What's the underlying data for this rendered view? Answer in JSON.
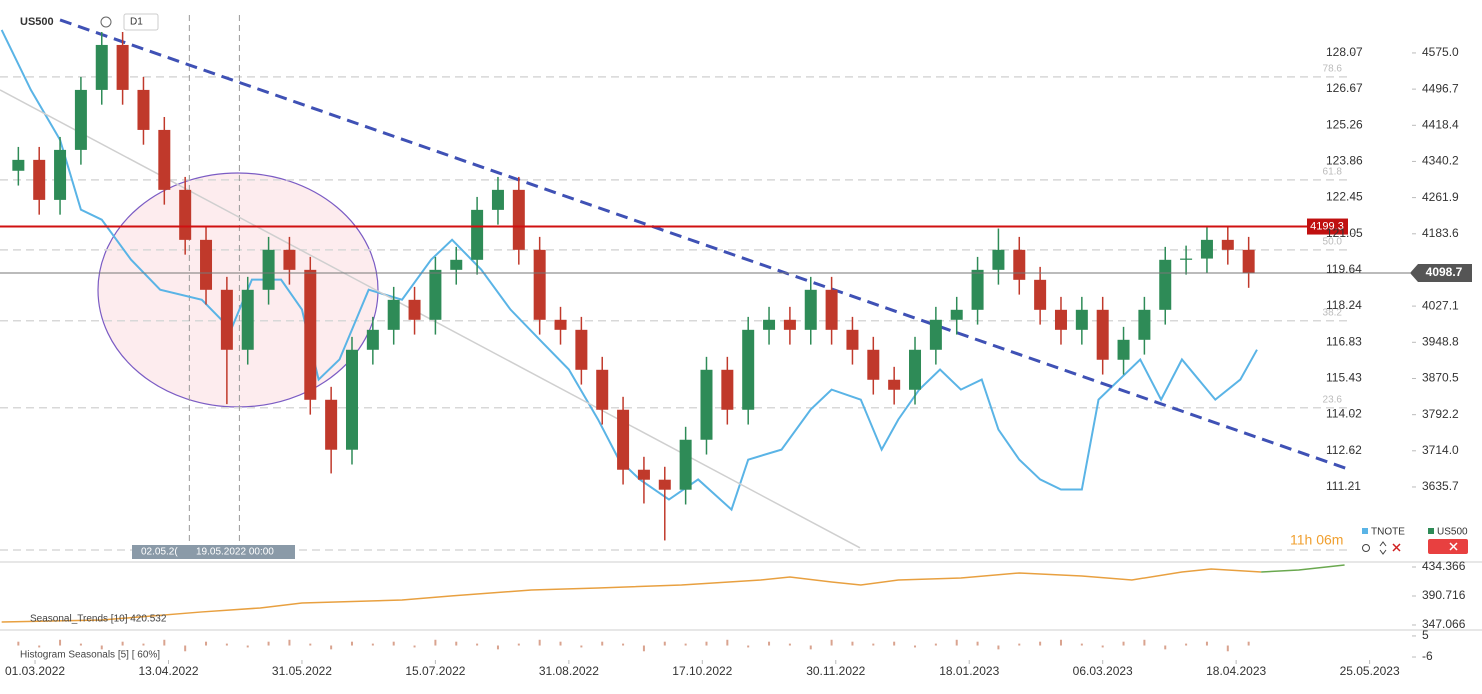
{
  "chart_data": [
    {
      "type": "candlestick",
      "title": "US500",
      "timeframe": "D1",
      "name": "US500",
      "color_up": "#2e8b57",
      "color_down": "#c0392b",
      "x": [
        -4,
        1,
        6,
        11,
        16,
        21,
        26,
        31,
        36,
        41,
        46,
        51,
        56,
        61,
        66,
        71,
        76,
        81,
        86,
        91,
        96,
        101,
        106,
        111,
        116,
        121,
        126,
        131,
        136,
        141,
        146,
        151,
        156,
        161,
        166,
        171,
        176,
        181,
        186,
        191,
        196,
        201,
        206,
        211,
        216,
        221,
        226,
        231,
        236,
        241,
        246,
        251,
        256,
        261,
        266,
        271,
        276,
        281,
        286,
        291
      ],
      "open": [
        4320.0,
        4343.6,
        4257.0,
        4365.2,
        4495.0,
        4592.3,
        4495.0,
        4408.4,
        4278.7,
        4170.5,
        4062.4,
        3932.6,
        4062.4,
        4148.9,
        4105.6,
        3824.4,
        3716.3,
        3932.6,
        3975.8,
        4040.7,
        3997.5,
        4105.6,
        4127.3,
        4235.4,
        4278.7,
        4148.9,
        3997.5,
        3975.8,
        3889.3,
        3802.8,
        3673.0,
        3651.4,
        3629.8,
        3737.9,
        3889.3,
        3802.8,
        3975.8,
        3997.5,
        3975.8,
        4062.4,
        3975.8,
        3932.6,
        3867.7,
        3846.1,
        3932.6,
        3997.5,
        4019.1,
        4105.6,
        4148.9,
        4084.0,
        4019.1,
        3975.8,
        4019.1,
        3911.0,
        3954.2,
        4019.1,
        4127.3,
        4130.0,
        4170.5,
        4148.9
      ],
      "close": [
        4343.6,
        4257.0,
        4365.2,
        4495.0,
        4592.3,
        4495.0,
        4408.4,
        4278.7,
        4170.5,
        4062.4,
        3932.6,
        4062.4,
        4148.9,
        4105.6,
        3824.4,
        3716.3,
        3932.6,
        3975.8,
        4040.7,
        3997.5,
        4105.6,
        4127.3,
        4235.4,
        4278.7,
        4148.9,
        3997.5,
        3975.8,
        3889.3,
        3802.8,
        3673.0,
        3651.4,
        3629.8,
        3737.9,
        3889.3,
        3802.8,
        3975.8,
        3997.5,
        3975.8,
        4062.4,
        3975.8,
        3932.6,
        3867.7,
        3846.1,
        3932.6,
        3997.5,
        4019.1,
        4105.6,
        4148.9,
        4084.0,
        4019.1,
        3975.8,
        4019.1,
        3911.0,
        3954.2,
        4019.1,
        4127.3,
        4130.0,
        4170.5,
        4148.9,
        4098.7
      ],
      "high": [
        4371.6,
        4371.6,
        4393.2,
        4523.0,
        4620.3,
        4620.3,
        4523.0,
        4436.4,
        4306.7,
        4198.5,
        4090.4,
        4090.4,
        4176.9,
        4176.9,
        4133.6,
        3852.4,
        3960.6,
        4003.8,
        4068.7,
        4068.7,
        4133.6,
        4155.3,
        4263.4,
        4306.7,
        4306.7,
        4176.9,
        4025.5,
        4003.8,
        3917.3,
        3830.8,
        3701.0,
        3679.4,
        3765.9,
        3917.3,
        3917.3,
        4003.8,
        4025.5,
        4025.5,
        4090.4,
        4090.4,
        4003.8,
        3960.6,
        3895.7,
        3960.6,
        4025.5,
        4047.1,
        4133.6,
        4195.0,
        4176.9,
        4112.0,
        4047.1,
        4047.1,
        4047.1,
        3982.2,
        4047.1,
        4155.3,
        4158.0,
        4198.5,
        4198.5,
        4176.9
      ],
      "low": [
        4288.0,
        4225.0,
        4225.0,
        4333.2,
        4463.0,
        4463.0,
        4376.4,
        4246.7,
        4138.5,
        4030.4,
        3815.0,
        3900.6,
        4030.4,
        4073.6,
        3792.4,
        3665.0,
        3684.3,
        3900.6,
        3943.8,
        3965.5,
        3965.5,
        4073.6,
        4095.3,
        4203.4,
        4116.9,
        3965.5,
        3943.8,
        3857.3,
        3770.8,
        3641.0,
        3600.0,
        3520.0,
        3597.8,
        3705.9,
        3770.8,
        3770.8,
        3943.8,
        3943.8,
        3943.8,
        3943.8,
        3900.6,
        3835.7,
        3814.1,
        3814.1,
        3900.6,
        3965.5,
        3987.1,
        4073.6,
        4052.0,
        3987.1,
        3943.8,
        3943.8,
        3879.0,
        3879.0,
        3922.2,
        3987.1,
        4095.3,
        4098.0,
        4116.9,
        4066.7
      ],
      "series": [
        {
          "name": "TNOTE",
          "color": "#5ab4e6",
          "axis": "y2",
          "x": [
            -8,
            -1,
            6,
            11,
            16,
            23,
            30,
            40,
            47,
            52,
            59,
            64,
            68,
            73,
            80,
            88,
            95,
            100,
            107,
            114,
            121,
            128,
            135,
            140,
            145,
            152,
            159,
            167,
            171,
            179,
            186,
            191,
            198,
            203,
            207,
            212,
            217,
            222,
            227,
            231,
            236,
            241,
            246,
            251,
            255,
            260,
            265,
            270,
            275,
            279,
            283,
            289,
            293
          ],
          "values": [
            128.96,
            126.63,
            124.69,
            121.98,
            121.59,
            120.04,
            118.87,
            118.48,
            117.32,
            119.26,
            119.26,
            118.1,
            115.38,
            116.16,
            118.87,
            118.48,
            120.04,
            120.81,
            119.65,
            118.1,
            116.93,
            115.77,
            113.83,
            112.27,
            111.5,
            110.72,
            111.5,
            110.33,
            112.27,
            112.66,
            114.22,
            114.99,
            114.6,
            112.66,
            113.83,
            114.99,
            115.77,
            114.99,
            115.38,
            113.44,
            112.27,
            111.5,
            111.11,
            111.11,
            114.6,
            115.38,
            116.16,
            114.6,
            116.16,
            115.38,
            114.6,
            115.38,
            116.54
          ]
        }
      ],
      "legend": [
        "TNOTE",
        "US500"
      ],
      "xlim": [
        -8.4,
        315.3
      ],
      "xticks": [
        {
          "value": 0,
          "label": "01.03.2022"
        },
        {
          "value": 32,
          "label": "13.04.2022"
        },
        {
          "value": 64,
          "label": "31.05.2022"
        },
        {
          "value": 96,
          "label": "15.07.2022"
        },
        {
          "value": 128,
          "label": "31.08.2022"
        },
        {
          "value": 160,
          "label": "17.10.2022"
        },
        {
          "value": 192,
          "label": "30.11.2022"
        },
        {
          "value": 224,
          "label": "18.01.2023"
        },
        {
          "value": 256,
          "label": "06.03.2023"
        },
        {
          "value": 288,
          "label": "18.04.2023"
        },
        {
          "value": 320,
          "label": "25.05.2023"
        }
      ],
      "ylim": [
        3499.3,
        4657.1
      ],
      "yticks": [
        {
          "value": 4575.0,
          "label": "4575.0"
        },
        4496.7,
        4418.4,
        4340.2,
        4261.9,
        4183.6,
        4027.1,
        3948.8,
        3870.5,
        3792.2,
        {
          "value": 3714.0,
          "label": "3714.0"
        },
        3635.7
      ],
      "y2lim": [
        108.76,
        129.54
      ],
      "y2ticks": [
        128.07,
        126.67,
        125.26,
        123.86,
        122.45,
        121.05,
        119.64,
        118.24,
        116.83,
        115.43,
        114.02,
        112.62,
        111.21
      ],
      "resistance": 4199.3,
      "last_price": 4098.7,
      "fibs": [
        {
          "level": "78.6",
          "price": 4523.1
        },
        {
          "level": "61.8",
          "price": 4300.3
        },
        {
          "level": "50.0",
          "price": 4148.9
        },
        {
          "level": "38.2",
          "price": 3995.3
        },
        {
          "level": "23.6",
          "price": 3807.1
        }
      ],
      "trendlines": [
        {
          "color": "#3f51b5",
          "dashed": true,
          "x": [
            6,
            315.3
          ],
          "y": [
            4646.4,
            3673.0
          ]
        },
        {
          "color": "#cfcfcf",
          "dashed": false,
          "x": [
            -8.4,
            197.8
          ],
          "y": [
            4495.0,
            3504.0
          ]
        }
      ],
      "crosshair": [
        {
          "x": 37,
          "label": "02.05.2("
        },
        {
          "x": 49,
          "label": "19.05.2022 00:00"
        }
      ],
      "timer": "11h 06m"
    },
    {
      "type": "line",
      "title": "Seasonal_Trends [10] 420.532",
      "xlim": [
        -8.4,
        315.3
      ],
      "series": [
        {
          "color": "#e8a040",
          "x": [
            -8,
            16,
            40,
            54,
            64,
            88,
            100,
            119,
            135,
            155,
            174,
            181,
            191,
            198,
            207,
            222,
            236,
            251,
            263,
            275,
            282,
            294
          ],
          "values": [
            351.6,
            354.6,
            366.7,
            372.7,
            380.2,
            384.7,
            390.8,
            399.8,
            402.8,
            407.3,
            414.8,
            419.3,
            411.8,
            407.3,
            414.8,
            417.8,
            425.4,
            420.9,
            414.8,
            426.9,
            431.4,
            426.9
          ]
        },
        {
          "color": "#6aa84f",
          "x": [
            294,
            303,
            314
          ],
          "values": [
            426.9,
            429.8,
            437.4
          ]
        }
      ],
      "ylim": [
        339.5,
        441.9
      ],
      "yticks": [
        434.366,
        390.716,
        347.066
      ]
    },
    {
      "type": "bar",
      "title": "Histogram Seasonals [5] [ 60%]",
      "xlim": [
        -8.4,
        315.3
      ],
      "color": "#d9a38f",
      "x": [
        -4,
        1,
        6,
        11,
        16,
        21,
        26,
        31,
        36,
        41,
        46,
        51,
        56,
        61,
        66,
        71,
        76,
        81,
        86,
        91,
        96,
        101,
        106,
        111,
        116,
        121,
        126,
        131,
        136,
        141,
        146,
        151,
        156,
        161,
        166,
        171,
        176,
        181,
        186,
        191,
        196,
        201,
        206,
        211,
        216,
        221,
        226,
        231,
        236,
        241,
        246,
        251,
        256,
        261,
        266,
        271,
        276,
        281,
        286,
        291
      ],
      "values": [
        2,
        -1,
        3,
        1,
        -2,
        2,
        1,
        3,
        -3,
        2,
        1,
        -1,
        2,
        3,
        1,
        -2,
        2,
        1,
        2,
        -1,
        3,
        2,
        1,
        -2,
        1,
        3,
        2,
        -1,
        2,
        1,
        -3,
        2,
        1,
        2,
        3,
        -1,
        2,
        1,
        -2,
        3,
        2,
        1,
        2,
        -1,
        1,
        3,
        2,
        -2,
        1,
        2,
        3,
        1,
        -1,
        2,
        3,
        -2,
        1,
        2,
        -3,
        2
      ],
      "ylim": [
        -8.6,
        8.1
      ],
      "yticks": [
        5,
        -6
      ]
    }
  ]
}
